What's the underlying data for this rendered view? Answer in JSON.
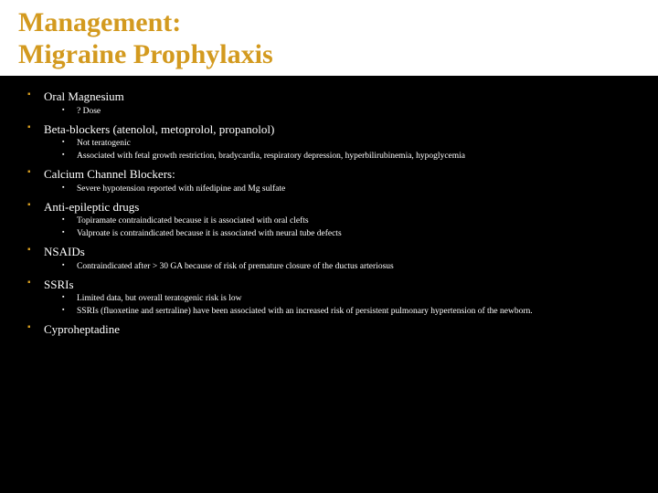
{
  "title_line1": "Management:",
  "title_line2": "Migraine Prophylaxis",
  "accent_color": "#d39a1f",
  "background_color": "#000000",
  "header_background": "#ffffff",
  "text_color": "#ffffff",
  "items": [
    {
      "label": "Oral Magnesium",
      "sub": [
        "? Dose"
      ]
    },
    {
      "label": "Beta-blockers (atenolol, metoprolol, propanolol)",
      "sub": [
        "Not teratogenic",
        "Associated with fetal growth restriction, bradycardia, respiratory depression, hyperbilirubinemia, hypoglycemia"
      ]
    },
    {
      "label": "Calcium Channel Blockers:",
      "sub": [
        "Severe hypotension reported with nifedipine and Mg sulfate"
      ]
    },
    {
      "label": "Anti-epileptic drugs",
      "sub": [
        "Topiramate contraindicated because it is associated with oral clefts",
        "Valproate is contraindicated because it is associated with neural tube defects"
      ]
    },
    {
      "label": "NSAIDs",
      "sub": [
        "Contraindicated after > 30 GA because of risk of premature closure of the ductus arteriosus"
      ]
    },
    {
      "label": "SSRIs",
      "sub": [
        "Limited data, but overall teratogenic risk is low",
        "SSRIs (fluoxetine and sertraline) have been associated with an increased risk of persistent pulmonary hypertension of the newborn."
      ]
    },
    {
      "label": "Cyproheptadine",
      "sub": []
    }
  ]
}
